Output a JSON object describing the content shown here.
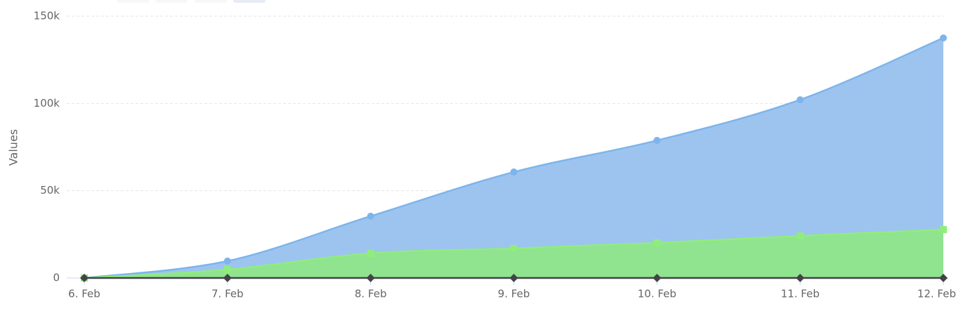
{
  "chart_data": {
    "type": "area",
    "y_axis_title": "Values",
    "categories": [
      "6. Feb",
      "7. Feb",
      "8. Feb",
      "9. Feb",
      "10. Feb",
      "11. Feb",
      "12. Feb"
    ],
    "series": [
      {
        "color": "#7cb5ec",
        "fill": "#9dc4ef",
        "marker": "circle",
        "values": [
          0,
          9700,
          35400,
          60700,
          78800,
          102100,
          137500
        ]
      },
      {
        "color": "#90ed7d",
        "fill": "#90e38f",
        "marker": "square",
        "values": [
          0,
          4800,
          14100,
          16900,
          20100,
          24100,
          27700
        ]
      },
      {
        "color": "#434348",
        "fill": "#434348",
        "marker": "diamond",
        "values": [
          0,
          0,
          0,
          0,
          0,
          0,
          0
        ]
      }
    ],
    "ylim": [
      0,
      150000
    ],
    "yticks": [
      0,
      {
        "value": 50000,
        "label": "50k"
      },
      {
        "value": 100000,
        "label": "100k"
      },
      {
        "value": 150000,
        "label": "150k"
      }
    ],
    "grid": true
  }
}
